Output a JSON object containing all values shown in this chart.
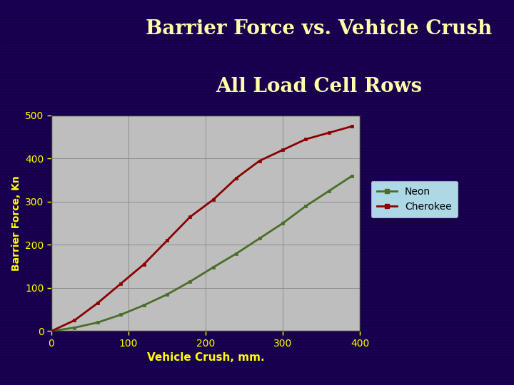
{
  "title_line1": "Barrier Force vs. Vehicle Crush",
  "title_line2": "All Load Cell Rows",
  "title_color": "#FFFFAA",
  "xlabel": "Vehicle Crush, mm.",
  "ylabel": "Barrier Force, Kn",
  "xlabel_color": "#FFFF00",
  "ylabel_color": "#FFFF00",
  "tick_color": "#FFFF00",
  "background_outer": "#1a0050",
  "background_plot": "#bebebe",
  "xlim": [
    0,
    400
  ],
  "ylim": [
    0,
    500
  ],
  "xticks": [
    0,
    100,
    200,
    300,
    400
  ],
  "yticks": [
    0,
    100,
    200,
    300,
    400,
    500
  ],
  "neon_x": [
    0,
    30,
    60,
    90,
    120,
    150,
    180,
    210,
    240,
    270,
    300,
    330,
    360,
    390
  ],
  "neon_y": [
    0,
    8,
    20,
    38,
    60,
    85,
    115,
    148,
    180,
    215,
    250,
    290,
    325,
    360
  ],
  "cherokee_x": [
    0,
    30,
    60,
    90,
    120,
    150,
    180,
    210,
    240,
    270,
    300,
    330,
    360,
    390
  ],
  "cherokee_y": [
    0,
    25,
    65,
    110,
    155,
    210,
    265,
    305,
    355,
    395,
    420,
    445,
    460,
    475
  ],
  "neon_color": "#4a6e28",
  "cherokee_color": "#8b0000",
  "legend_bg": "#add8e6",
  "grid_color": "#888888",
  "spine_color": "#333333",
  "title_fontsize": 20,
  "tick_fontsize": 10,
  "xlabel_fontsize": 11,
  "ylabel_fontsize": 10
}
